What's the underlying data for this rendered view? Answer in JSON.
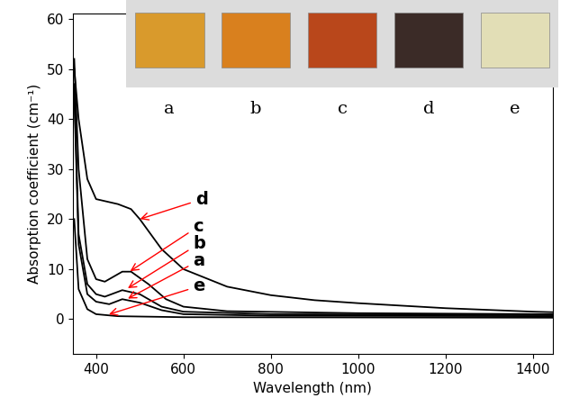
{
  "chart_data": {
    "type": "line",
    "x_label": "Wavelength (nm)",
    "y_label": "Absorption coefficient (cm⁻¹)",
    "xlim": [
      347,
      1445
    ],
    "ylim": [
      -7,
      61
    ],
    "xticks": [
      400,
      600,
      800,
      1000,
      1200,
      1400
    ],
    "yticks": [
      0,
      10,
      20,
      30,
      40,
      50,
      60
    ],
    "grid": false,
    "sample_labels": [
      "a",
      "b",
      "c",
      "d",
      "e"
    ],
    "series": [
      {
        "name": "d",
        "color": "#000000",
        "x": [
          350,
          360,
          380,
          400,
          450,
          480,
          500,
          550,
          600,
          700,
          800,
          900,
          1000,
          1200,
          1400,
          1445
        ],
        "values": [
          50,
          40,
          28,
          24,
          23,
          22,
          20,
          14,
          10,
          6.5,
          4.8,
          3.8,
          3.2,
          2.2,
          1.5,
          1.4
        ]
      },
      {
        "name": "c",
        "color": "#000000",
        "x": [
          350,
          360,
          380,
          400,
          420,
          460,
          480,
          520,
          560,
          600,
          700,
          1000,
          1445
        ],
        "values": [
          52,
          30,
          12,
          8,
          7.5,
          9.5,
          9.5,
          7,
          4,
          2.5,
          1.6,
          1.2,
          1
        ]
      },
      {
        "name": "b",
        "color": "#000000",
        "x": [
          350,
          360,
          380,
          400,
          420,
          460,
          500,
          550,
          600,
          800,
          1445
        ],
        "values": [
          47,
          17,
          7,
          5,
          4.5,
          5.8,
          5,
          2.5,
          1.5,
          1,
          0.8
        ]
      },
      {
        "name": "a",
        "color": "#000000",
        "x": [
          350,
          360,
          380,
          400,
          430,
          460,
          500,
          550,
          600,
          800,
          1445
        ],
        "values": [
          45,
          15,
          5,
          3.5,
          3,
          4,
          3.3,
          1.8,
          1,
          0.7,
          0.6
        ]
      },
      {
        "name": "e",
        "color": "#000000",
        "x": [
          350,
          360,
          380,
          400,
          450,
          600,
          1445
        ],
        "values": [
          20,
          6,
          2,
          1,
          0.6,
          0.4,
          0.3
        ]
      }
    ]
  }
}
